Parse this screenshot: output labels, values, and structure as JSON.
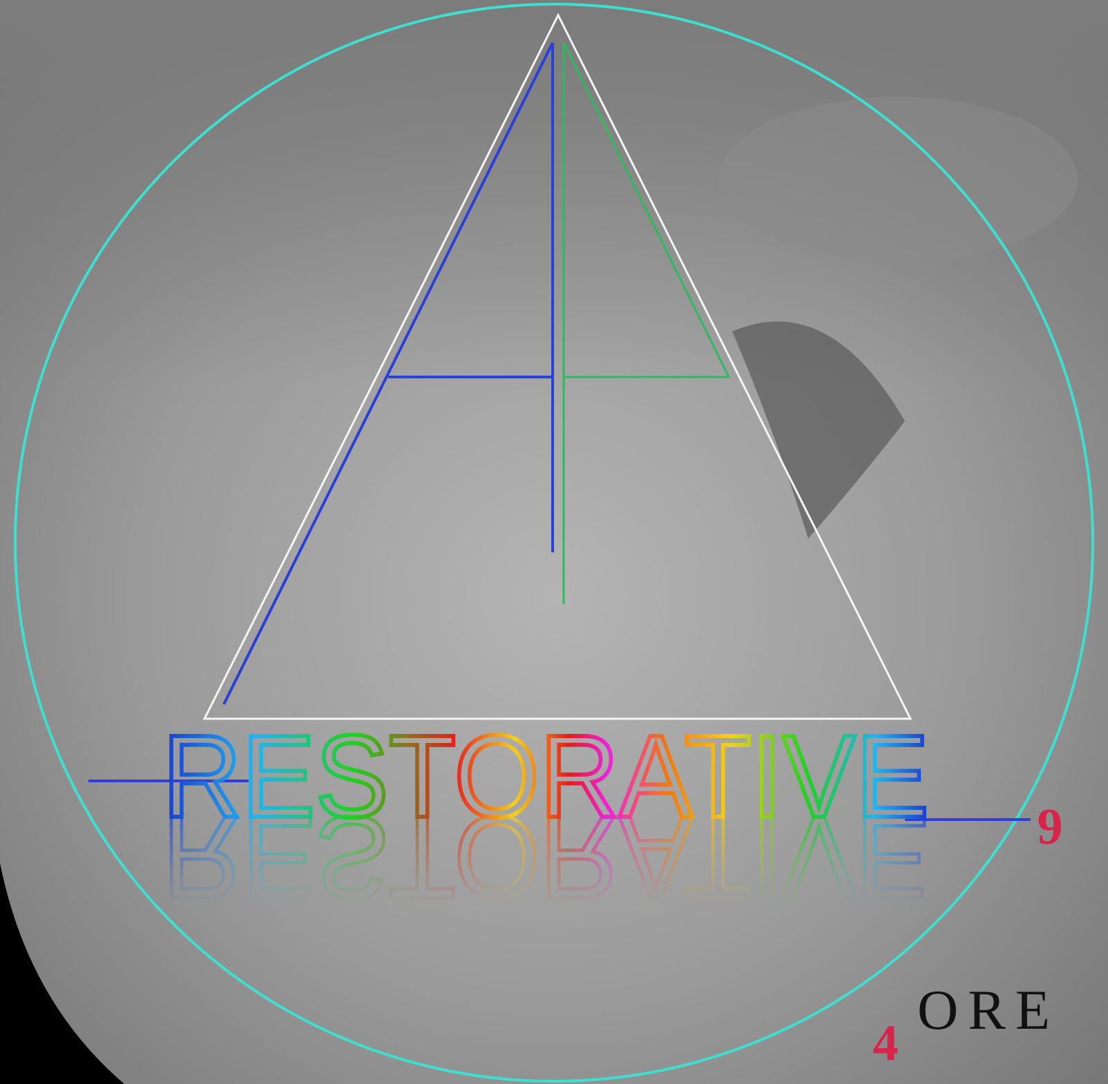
{
  "logo": {
    "wordmark": "RESTORATIVE"
  },
  "labels": {
    "nine": "9",
    "four": "4",
    "word": "ORE"
  }
}
